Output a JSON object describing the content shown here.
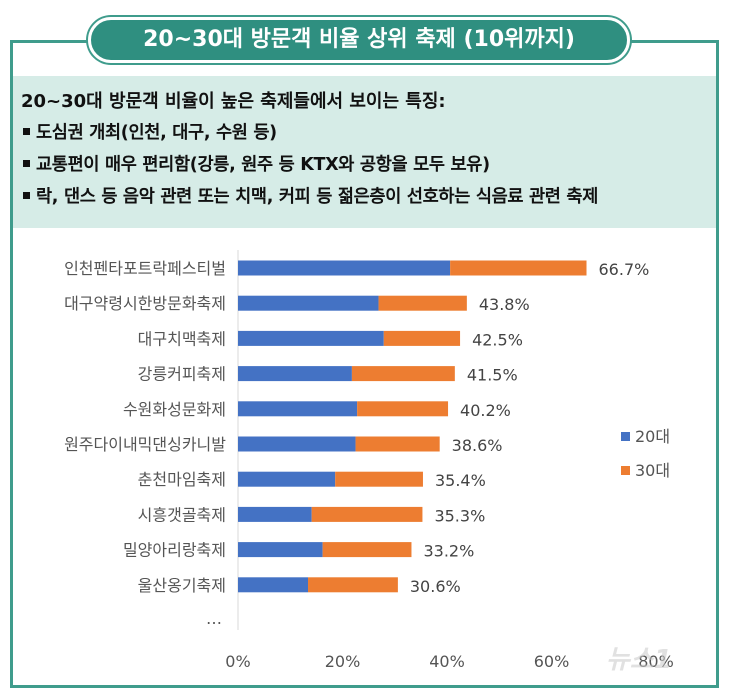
{
  "title": "20~30대 방문객 비율 상위 축제 (10위까지)",
  "features": {
    "heading": "20~30대 방문객 비율이 높은 축제들에서 보이는 특징:",
    "items": [
      "도심권 개최(인천, 대구, 수원 등)",
      "교통편이 매우 편리함(강릉, 원주 등 KTX와 공항을 모두 보유)",
      "락, 댄스 등 음악 관련 또는 치맥, 커피 등 젊은층이 선호하는 식음료 관련 축제"
    ]
  },
  "chart_data": {
    "type": "bar",
    "orientation": "horizontal",
    "stacked": true,
    "categories": [
      "인천펜타포트락페스티벌",
      "대구약령시한방문화축제",
      "대구치맥축제",
      "강릉커피축제",
      "수원화성문화제",
      "원주다이내믹댄싱카니발",
      "춘천마임축제",
      "시흥갯골축제",
      "밀양아리랑축제",
      "울산옹기축제"
    ],
    "series": [
      {
        "name": "20대",
        "values": [
          40.6,
          26.9,
          27.9,
          21.8,
          22.8,
          22.5,
          18.6,
          14.1,
          16.2,
          13.4
        ]
      },
      {
        "name": "30대",
        "values": [
          26.1,
          16.9,
          14.6,
          19.7,
          17.4,
          16.1,
          16.8,
          21.2,
          17.0,
          17.2
        ]
      }
    ],
    "totals": [
      "66.7%",
      "43.8%",
      "42.5%",
      "41.5%",
      "40.2%",
      "38.6%",
      "35.4%",
      "35.3%",
      "33.2%",
      "30.6%"
    ],
    "ellipsis": "…",
    "x_ticks": [
      "0%",
      "20%",
      "40%",
      "60%",
      "80%"
    ],
    "xlim": [
      0,
      80
    ],
    "legend_position": "right",
    "colors": {
      "20대": "#4472c4",
      "30대": "#ed7d31"
    }
  },
  "watermark": "뉴스1"
}
